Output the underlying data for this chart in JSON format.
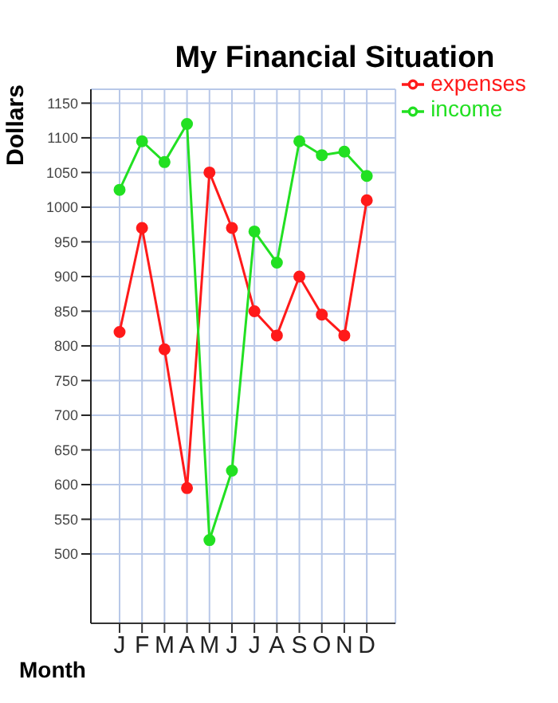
{
  "chart_data": {
    "type": "line",
    "title": "My Financial Situation",
    "xlabel": "Month",
    "ylabel": "Dollars",
    "categories": [
      "J",
      "F",
      "M",
      "A",
      "M",
      "J",
      "J",
      "A",
      "S",
      "O",
      "N",
      "D"
    ],
    "series": [
      {
        "name": "expenses",
        "color": "#ff1a1a",
        "values": [
          820,
          970,
          795,
          595,
          1050,
          970,
          850,
          815,
          900,
          845,
          815,
          1010
        ]
      },
      {
        "name": "income",
        "color": "#22e022",
        "values": [
          1025,
          1095,
          1065,
          1120,
          520,
          620,
          965,
          920,
          1095,
          1075,
          1080,
          1045
        ]
      }
    ],
    "ylim": [
      400,
      1170
    ],
    "yticks": [
      500,
      550,
      600,
      650,
      700,
      750,
      800,
      850,
      900,
      950,
      1000,
      1050,
      1100,
      1150
    ],
    "grid": true,
    "legend": "top right",
    "marker": "circle",
    "line_style": "solid"
  }
}
